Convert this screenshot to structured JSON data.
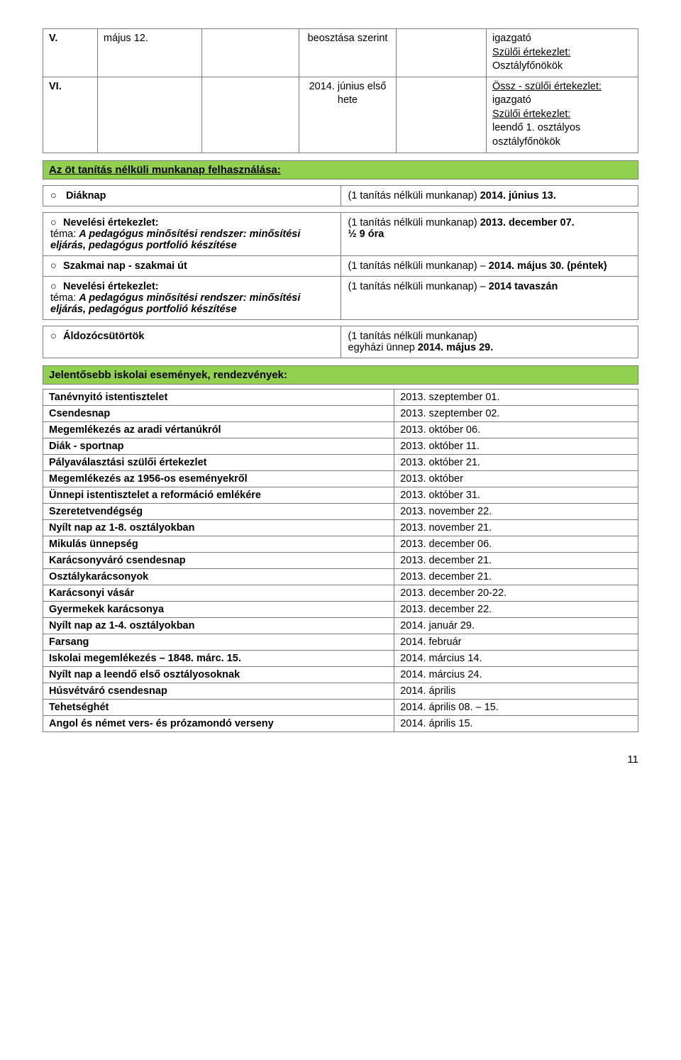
{
  "topTable": {
    "rows": [
      {
        "roman": "V.",
        "date": "május 12.",
        "mid1": "beosztása szerint",
        "midRowspan": true,
        "rightLines": [
          "igazgató",
          "<u>Szülői értekezlet:</u>",
          "Osztályfőnökök"
        ]
      },
      {
        "roman": "VI.",
        "date": "",
        "mid1": "2014. június első hete",
        "rightLines": [
          "<u>Össz - szülői értekezlet:</u> igazgató",
          "<u>Szülői értekezlet:</u>",
          "leendő 1. osztályos osztályfőnökök"
        ]
      }
    ]
  },
  "section1": {
    "title": "Az öt tanítás nélküli munkanap felhasználása:"
  },
  "diaknap": {
    "left": "Diáknap",
    "right": "(1 tanítás nélküli munkanap) 2014. június 13."
  },
  "munkanap": {
    "rows": [
      {
        "leftHtml": "<span class='o'>○</span><b>Nevelési értekezlet:</b><br>téma: <b><i>A pedagógus minősítési rendszer: minősítési eljárás, pedagógus portfolió készítése</i></b>",
        "rightHtml": "(1 tanítás nélküli munkanap) <b>2013. december 07.</b><br><b>½ 9 óra</b>"
      },
      {
        "leftHtml": "<span class='o'>○</span><b>Szakmai nap - szakmai út</b>",
        "rightHtml": "(1 tanítás nélküli munkanap) – <b>2014. május 30. (péntek)</b>"
      },
      {
        "leftHtml": "<span class='o'>○</span><b>Nevelési értekezlet:</b><br>téma: <b><i>A pedagógus minősítési rendszer: minősítési eljárás, pedagógus portfolió készítése</i></b>",
        "rightHtml": "(1 tanítás nélküli munkanap) – <b>2014 tavaszán</b>"
      }
    ]
  },
  "aldozo": {
    "leftHtml": "<span class='o'>○</span><b>Áldozócsütörtök</b>",
    "rightHtml": "(1 tanítás nélküli munkanap)<br>egyházi ünnep <b>2014. május 29.</b>"
  },
  "section2": {
    "title": "Jelentősebb iskolai események, rendezvények:"
  },
  "events": [
    [
      "Tanévnyitó istentisztelet",
      "2013. szeptember 01."
    ],
    [
      "Csendesnap",
      "2013. szeptember 02."
    ],
    [
      "Megemlékezés az aradi vértanúkról",
      "2013. október 06."
    ],
    [
      "Diák - sportnap",
      "2013. október 11."
    ],
    [
      "Pályaválasztási szülői értekezlet",
      "2013. október 21."
    ],
    [
      "Megemlékezés az 1956-os eseményekről",
      "2013. október"
    ],
    [
      "Ünnepi istentisztelet a reformáció emlékére",
      "2013. október 31."
    ],
    [
      "Szeretetvendégség",
      "2013. november 22."
    ],
    [
      "Nyílt nap az 1-8. osztályokban",
      "2013. november 21."
    ],
    [
      "Mikulás ünnepség",
      "2013. december 06."
    ],
    [
      "Karácsonyváró csendesnap",
      "2013. december 21."
    ],
    [
      "Osztálykarácsonyok",
      "2013. december 21."
    ],
    [
      "Karácsonyi vásár",
      "2013. december 20-22."
    ],
    [
      "Gyermekek karácsonya",
      "2013. december 22."
    ],
    [
      "Nyílt nap az 1-4. osztályokban",
      "2014. január 29."
    ],
    [
      "Farsang",
      "2014. február"
    ],
    [
      "Iskolai megemlékezés – 1848. márc. 15.",
      "2014. március 14."
    ],
    [
      "Nyílt nap a leendő első osztályosoknak",
      "2014. március 24."
    ],
    [
      "Húsvétváró csendesnap",
      "2014. április"
    ],
    [
      "Tehetséghét",
      "2014. április 08. – 15."
    ],
    [
      "Angol és német vers- és prózamondó verseny",
      "2014. április 15."
    ]
  ],
  "pageNum": "11"
}
